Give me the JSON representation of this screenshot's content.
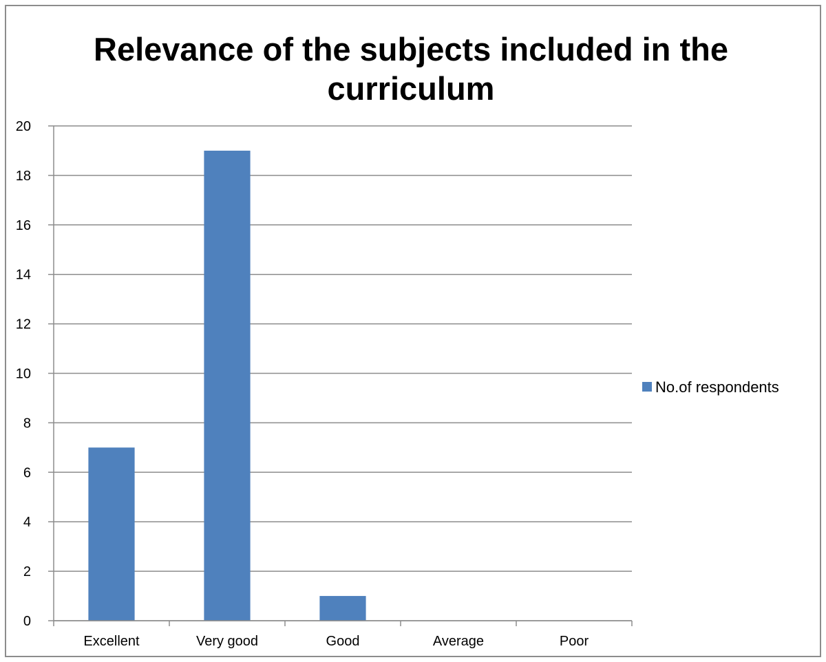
{
  "chart_data": {
    "type": "bar",
    "title": "Relevance of the subjects included in the curriculum",
    "title_lines": [
      "Relevance of the subjects included in the",
      "curriculum"
    ],
    "categories": [
      "Excellent",
      "Very good",
      "Good",
      "Average",
      "Poor"
    ],
    "series": [
      {
        "name": "No.of respondents",
        "values": [
          7,
          19,
          1,
          0,
          0
        ],
        "color": "#4F81BD"
      }
    ],
    "xlabel": "",
    "ylabel": "",
    "ylim": [
      0,
      20
    ],
    "yticks": [
      0,
      2,
      4,
      6,
      8,
      10,
      12,
      14,
      16,
      18,
      20
    ],
    "grid": true,
    "legend_position": "right",
    "colors": {
      "gridline": "#8C8C8C",
      "axis": "#8C8C8C",
      "border": "#8C8C8C",
      "text": "#000000"
    }
  }
}
